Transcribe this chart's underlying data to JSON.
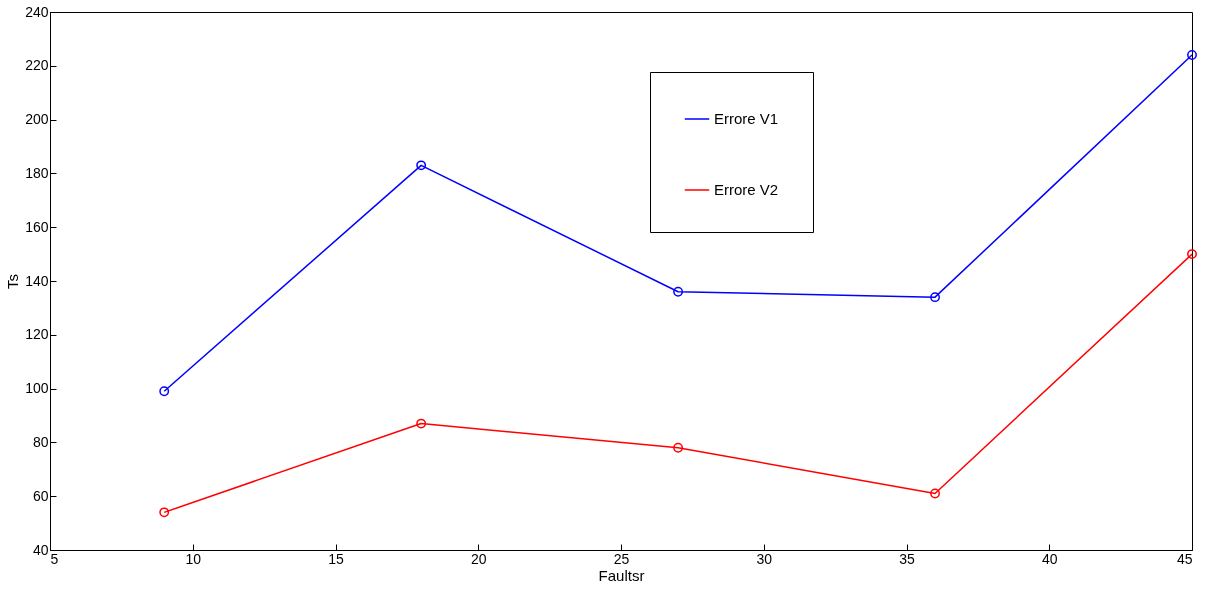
{
  "chart_data": {
    "type": "line",
    "xlabel": "Faultsr",
    "ylabel": "Ts",
    "x": [
      9,
      18,
      27,
      36,
      45
    ],
    "series": [
      {
        "name": "Errore V1",
        "color": "#0000ff",
        "values": [
          99,
          183,
          136,
          134,
          224
        ]
      },
      {
        "name": "Errore V2",
        "color": "#ff0000",
        "values": [
          54,
          87,
          78,
          61,
          150
        ]
      }
    ],
    "xlim": [
      5,
      45
    ],
    "xticks": [
      5,
      10,
      15,
      20,
      25,
      30,
      35,
      40,
      45
    ],
    "ylim": [
      40,
      240
    ],
    "yticks": [
      40,
      60,
      80,
      100,
      120,
      140,
      160,
      180,
      200,
      220,
      240
    ],
    "grid": false,
    "legend": "top right",
    "marker": "circle",
    "line_style": "solid"
  }
}
